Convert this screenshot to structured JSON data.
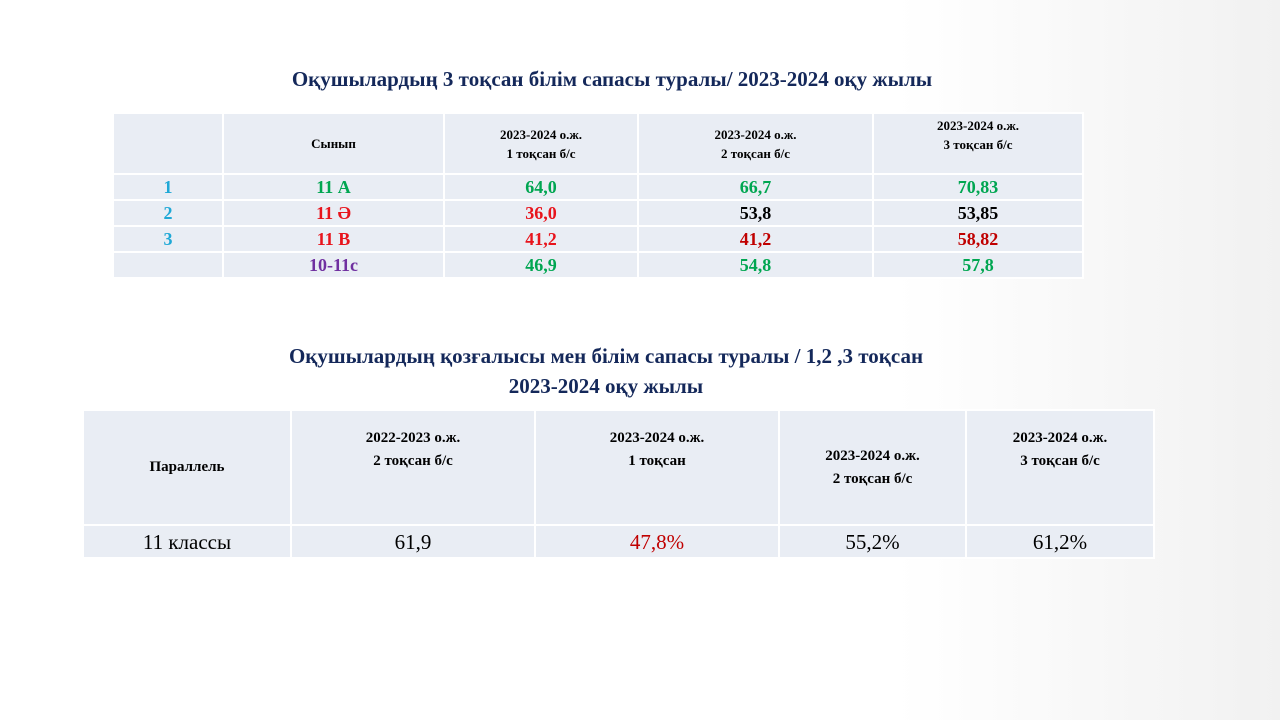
{
  "title1": "Оқушылардың 3 тоқсан білім сапасы туралы/ 2023-2024 оқу жылы",
  "table1": {
    "headers": [
      "",
      "Сынып",
      "2023-2024 о.ж.\n1 тоқсан б/с",
      "2023-2024 о.ж.\n 2 тоқсан б/с",
      "2023-2024 о.ж.\n3 тоқсан б/с"
    ],
    "rows": [
      {
        "num": "1",
        "class": "11 А",
        "q1": "64,0",
        "q2": "66,7",
        "q3": "70,83"
      },
      {
        "num": "2",
        "class": "11 Ә",
        "q1": "36,0",
        "q2": "53,8",
        "q3": "53,85"
      },
      {
        "num": "3",
        "class": "11 В",
        "q1": "41,2",
        "q2": "41,2",
        "q3": "58,82"
      },
      {
        "num": "",
        "class": "10-11с",
        "q1": "46,9",
        "q2": "54,8",
        "q3": "57,8"
      }
    ]
  },
  "title2": {
    "line1": "Оқушылардың қозғалысы мен білім сапасы туралы / 1,2 ,3 тоқсан",
    "line2": "2023-2024 оқу жылы"
  },
  "table2": {
    "headers": [
      "Параллель",
      "2022-2023 о.ж.\n2 тоқсан б/с",
      "2023-2024 о.ж.\n1 тоқсан",
      "2023-2024 о.ж.\n2 тоқсан б/с",
      "2023-2024 о.ж.\n3 тоқсан б/с"
    ],
    "row": [
      "11 классы",
      "61,9",
      "47,8%",
      "55,2%",
      "61,2%"
    ]
  },
  "colors": {
    "title": "#14285a",
    "number": "#1fa8d6",
    "green": "#00a651",
    "red": "#e8141c",
    "darkred": "#c00000",
    "purple": "#7030a0",
    "black": "#000000",
    "cell_bg": "#e9edf4"
  }
}
